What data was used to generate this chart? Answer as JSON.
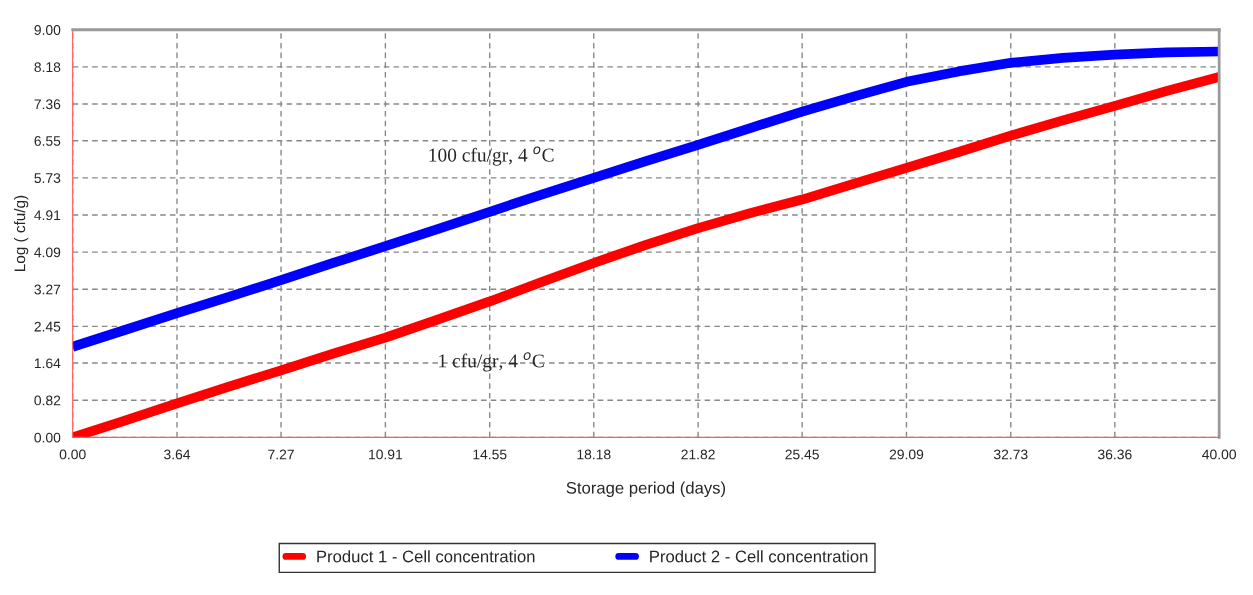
{
  "chart_data": {
    "type": "line",
    "xlabel": "Storage period (days)",
    "ylabel": "Log ( cfu/g)",
    "x": [
      0,
      1.82,
      3.64,
      5.45,
      7.27,
      9.09,
      10.91,
      12.73,
      14.55,
      16.36,
      18.18,
      20,
      21.82,
      23.64,
      25.45,
      27.27,
      29.09,
      30.91,
      32.73,
      34.55,
      36.36,
      38.18,
      40
    ],
    "series": [
      {
        "name": "Product 1 - Cell concentration",
        "color": "#ff0000",
        "values": [
          0,
          0.37,
          0.75,
          1.12,
          1.48,
          1.85,
          2.2,
          2.6,
          3.0,
          3.43,
          3.85,
          4.25,
          4.62,
          4.95,
          5.25,
          5.6,
          5.95,
          6.3,
          6.66,
          7.0,
          7.32,
          7.65,
          7.96
        ]
      },
      {
        "name": "Product 2 - Cell concentration",
        "color": "#0000ff",
        "values": [
          2.0,
          2.37,
          2.74,
          3.1,
          3.47,
          3.85,
          4.22,
          4.6,
          4.98,
          5.36,
          5.73,
          6.1,
          6.46,
          6.83,
          7.19,
          7.53,
          7.85,
          8.08,
          8.27,
          8.38,
          8.45,
          8.5,
          8.52
        ]
      }
    ],
    "xlim": [
      0,
      40
    ],
    "ylim": [
      0,
      9
    ],
    "xticks": [
      {
        "value": 0,
        "label": "0.00"
      },
      {
        "value": 3.64,
        "label": "3.64"
      },
      {
        "value": 7.27,
        "label": "7.27"
      },
      {
        "value": 10.91,
        "label": "10.91"
      },
      {
        "value": 14.55,
        "label": "14.55"
      },
      {
        "value": 18.18,
        "label": "18.18"
      },
      {
        "value": 21.82,
        "label": "21.82"
      },
      {
        "value": 25.45,
        "label": "25.45"
      },
      {
        "value": 29.09,
        "label": "29.09"
      },
      {
        "value": 32.73,
        "label": "32.73"
      },
      {
        "value": 36.36,
        "label": "36.36"
      },
      {
        "value": 40,
        "label": "40.00"
      }
    ],
    "yticks": [
      {
        "value": 0,
        "label": "0.00"
      },
      {
        "value": 0.82,
        "label": "0.82"
      },
      {
        "value": 1.64,
        "label": "1.64"
      },
      {
        "value": 2.45,
        "label": "2.45"
      },
      {
        "value": 3.27,
        "label": "3.27"
      },
      {
        "value": 4.09,
        "label": "4.09"
      },
      {
        "value": 4.91,
        "label": "4.91"
      },
      {
        "value": 5.73,
        "label": "5.73"
      },
      {
        "value": 6.55,
        "label": "6.55"
      },
      {
        "value": 7.36,
        "label": "7.36"
      },
      {
        "value": 8.18,
        "label": "8.18"
      },
      {
        "value": 9,
        "label": "9.00"
      }
    ],
    "annotations": [
      "100 cfu/gr, 4 $^{o}$C",
      "1 cfu/gr, 4 $^{o}$C"
    ],
    "grid": true,
    "legend": "bottom",
    "marker": "none",
    "line_style": "solid"
  }
}
